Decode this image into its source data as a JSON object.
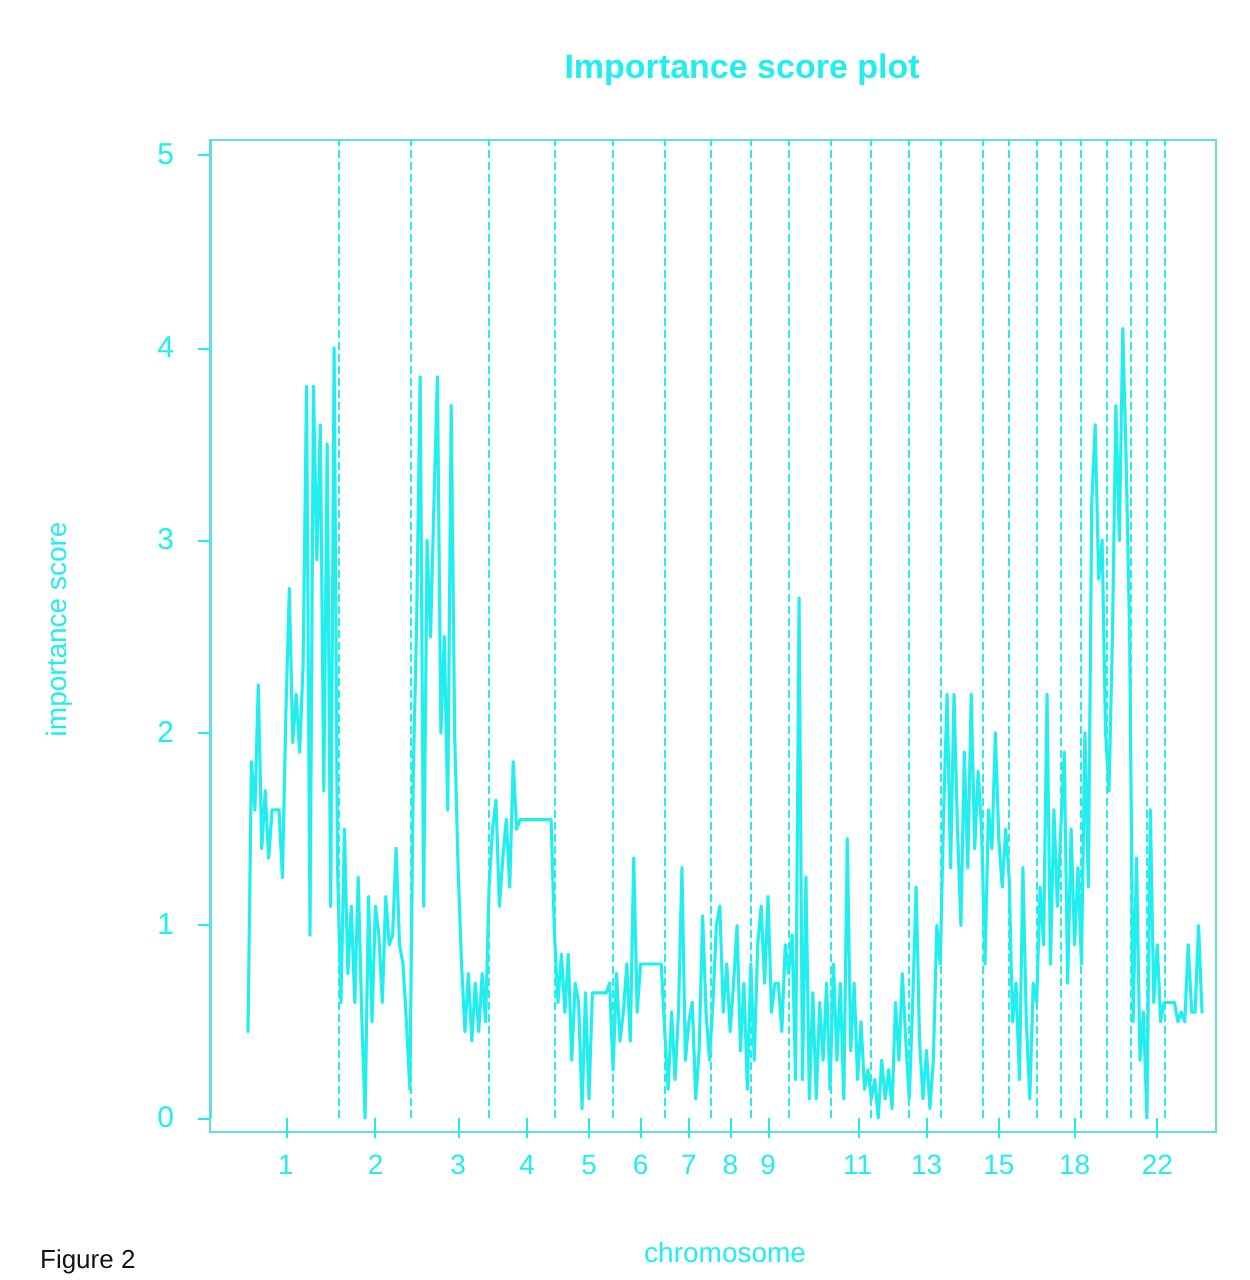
{
  "chart_data": {
    "type": "line",
    "title": "Importance score plot",
    "xlabel": "chromosome",
    "ylabel": "importance score",
    "annotations": [
      "Figure 2"
    ],
    "ylim": [
      0,
      5.08
    ],
    "yticks": [
      0,
      1,
      2,
      3,
      4,
      5
    ],
    "grid": false,
    "marker": "none",
    "line_style": "solid",
    "categories": [
      null,
      null,
      null,
      null,
      null,
      null,
      null,
      null,
      null,
      null,
      null,
      "1",
      null,
      null,
      null,
      null,
      null,
      null,
      null,
      null,
      null,
      null,
      null,
      null,
      null,
      null,
      null,
      null,
      null,
      null,
      null,
      null,
      null,
      null,
      null,
      null,
      null,
      "2",
      null,
      null,
      null,
      null,
      null,
      null,
      null,
      null,
      null,
      null,
      null,
      null,
      null,
      null,
      null,
      null,
      null,
      null,
      null,
      null,
      null,
      null,
      null,
      "3",
      null,
      null,
      null,
      null,
      null,
      null,
      null,
      null,
      null,
      null,
      null,
      null,
      null,
      null,
      null,
      null,
      null,
      null,
      null,
      "4",
      null,
      null,
      null,
      null,
      null,
      null,
      null,
      null,
      null,
      null,
      null,
      null,
      null,
      null,
      null,
      null,
      null,
      "5",
      null,
      null,
      null,
      null,
      null,
      null,
      null,
      null,
      null,
      null,
      null,
      null,
      null,
      null,
      "6",
      null,
      null,
      null,
      null,
      null,
      null,
      null,
      null,
      null,
      null,
      null,
      null,
      null,
      "7",
      null,
      null,
      null,
      null,
      null,
      null,
      null,
      null,
      null,
      null,
      null,
      "8",
      null,
      null,
      null,
      null,
      null,
      null,
      null,
      null,
      null,
      null,
      "9",
      null,
      null,
      null,
      null,
      null,
      null,
      null,
      null,
      null,
      null,
      null,
      null,
      null,
      null,
      null,
      null,
      null,
      null,
      null,
      null,
      null,
      null,
      null,
      null,
      null,
      "11",
      null,
      null,
      null,
      null,
      null,
      null,
      null,
      null,
      null,
      null,
      null,
      null,
      null,
      null,
      null,
      null,
      null,
      null,
      null,
      "13",
      null,
      null,
      null,
      null,
      null,
      null,
      null,
      null,
      null,
      null,
      null,
      null,
      null,
      null,
      null,
      null,
      null,
      null,
      null,
      null,
      "15",
      null,
      null,
      null,
      null,
      null,
      null,
      null,
      null,
      null,
      null,
      null,
      null,
      null,
      null,
      null,
      null,
      null,
      null,
      null,
      null,
      null,
      "18",
      null,
      null,
      null,
      null,
      null,
      null,
      null,
      null,
      null,
      null,
      null,
      null,
      null,
      null,
      null,
      null,
      null,
      null,
      null,
      null,
      null,
      null,
      null,
      "22",
      null,
      null,
      null,
      null,
      null,
      null,
      null,
      null,
      null,
      null,
      null,
      null,
      null
    ],
    "series": [
      {
        "color": "#22eeee",
        "values": [
          0.45,
          1.85,
          1.6,
          2.25,
          1.4,
          1.7,
          1.35,
          1.6,
          1.6,
          1.6,
          1.25,
          2.1,
          2.75,
          1.95,
          2.2,
          1.9,
          2.35,
          3.8,
          0.95,
          3.8,
          2.9,
          3.6,
          1.7,
          3.5,
          1.1,
          4.0,
          1.3,
          0.6,
          1.5,
          0.75,
          1.1,
          0.6,
          1.25,
          0.55,
          0,
          1.15,
          0.5,
          1.1,
          0.95,
          0.6,
          1.15,
          0.9,
          0.95,
          1.4,
          0.9,
          0.8,
          0.5,
          0.15,
          1.8,
          2.6,
          3.85,
          1.1,
          3.0,
          2.5,
          3.2,
          3.85,
          2.0,
          2.5,
          1.6,
          3.7,
          2.0,
          1.3,
          0.8,
          0.45,
          0.75,
          0.4,
          0.7,
          0.45,
          0.75,
          0.5,
          1.2,
          1.5,
          1.65,
          1.1,
          1.35,
          1.55,
          1.2,
          1.85,
          1.5,
          1.55,
          1.55,
          1.55,
          1.55,
          1.55,
          1.55,
          1.55,
          1.55,
          1.55,
          1.55,
          0.95,
          0.6,
          0.85,
          0.55,
          0.85,
          0.3,
          0.7,
          0.6,
          0.05,
          0.65,
          0.1,
          0.65,
          0.65,
          0.65,
          0.65,
          0.65,
          0.7,
          0.25,
          0.75,
          0.4,
          0.55,
          0.8,
          0.4,
          1.35,
          0.55,
          0.8,
          0.8,
          0.8,
          0.8,
          0.8,
          0.8,
          0.8,
          0.45,
          0.15,
          0.55,
          0.2,
          0.55,
          1.3,
          0.3,
          0.5,
          0.6,
          0.1,
          0.35,
          1.05,
          0.55,
          0.3,
          0.6,
          1.0,
          1.1,
          0.55,
          0.8,
          0.45,
          0.7,
          1.0,
          0.35,
          0.7,
          0.15,
          0.8,
          0.3,
          0.9,
          1.1,
          0.7,
          1.15,
          0.55,
          0.7,
          0.7,
          0.45,
          0.9,
          0.75,
          0.95,
          0.2,
          2.7,
          0.2,
          1.25,
          0.1,
          0.65,
          0.1,
          0.6,
          0.3,
          0.7,
          0.15,
          0.8,
          0.3,
          0.7,
          0.1,
          1.45,
          0.35,
          0.7,
          0.2,
          0.5,
          0.15,
          0.25,
          0.1,
          0.2,
          0,
          0.3,
          0.1,
          0.25,
          0.05,
          0.6,
          0.3,
          0.75,
          0.4,
          0.1,
          0.6,
          1.2,
          0.4,
          0.1,
          0.35,
          0.05,
          0.3,
          1.0,
          0.8,
          1.6,
          2.2,
          1.3,
          2.2,
          1.5,
          1.0,
          1.9,
          1.3,
          2.2,
          1.4,
          1.8,
          1.5,
          0.8,
          1.6,
          1.4,
          2.0,
          1.45,
          1.2,
          1.5,
          1.25,
          0.5,
          0.7,
          0.2,
          1.3,
          0.5,
          0.1,
          0.7,
          0.6,
          1.2,
          0.9,
          2.2,
          0.8,
          1.6,
          1.1,
          1.5,
          1.9,
          0.7,
          1.5,
          0.9,
          1.3,
          0.8,
          2.0,
          1.2,
          3.2,
          3.6,
          2.8,
          3.0,
          2.0,
          1.7,
          2.5,
          3.7,
          3.0,
          4.1,
          3.4,
          2.5,
          0.5,
          1.35,
          0.3,
          0.55,
          0,
          1.6,
          0.6,
          0.9,
          0.5,
          0.6,
          0.6,
          0.6,
          0.6,
          0.5,
          0.55,
          0.5,
          0.9,
          0.55,
          0.55,
          1.0,
          0.55
        ]
      }
    ]
  }
}
